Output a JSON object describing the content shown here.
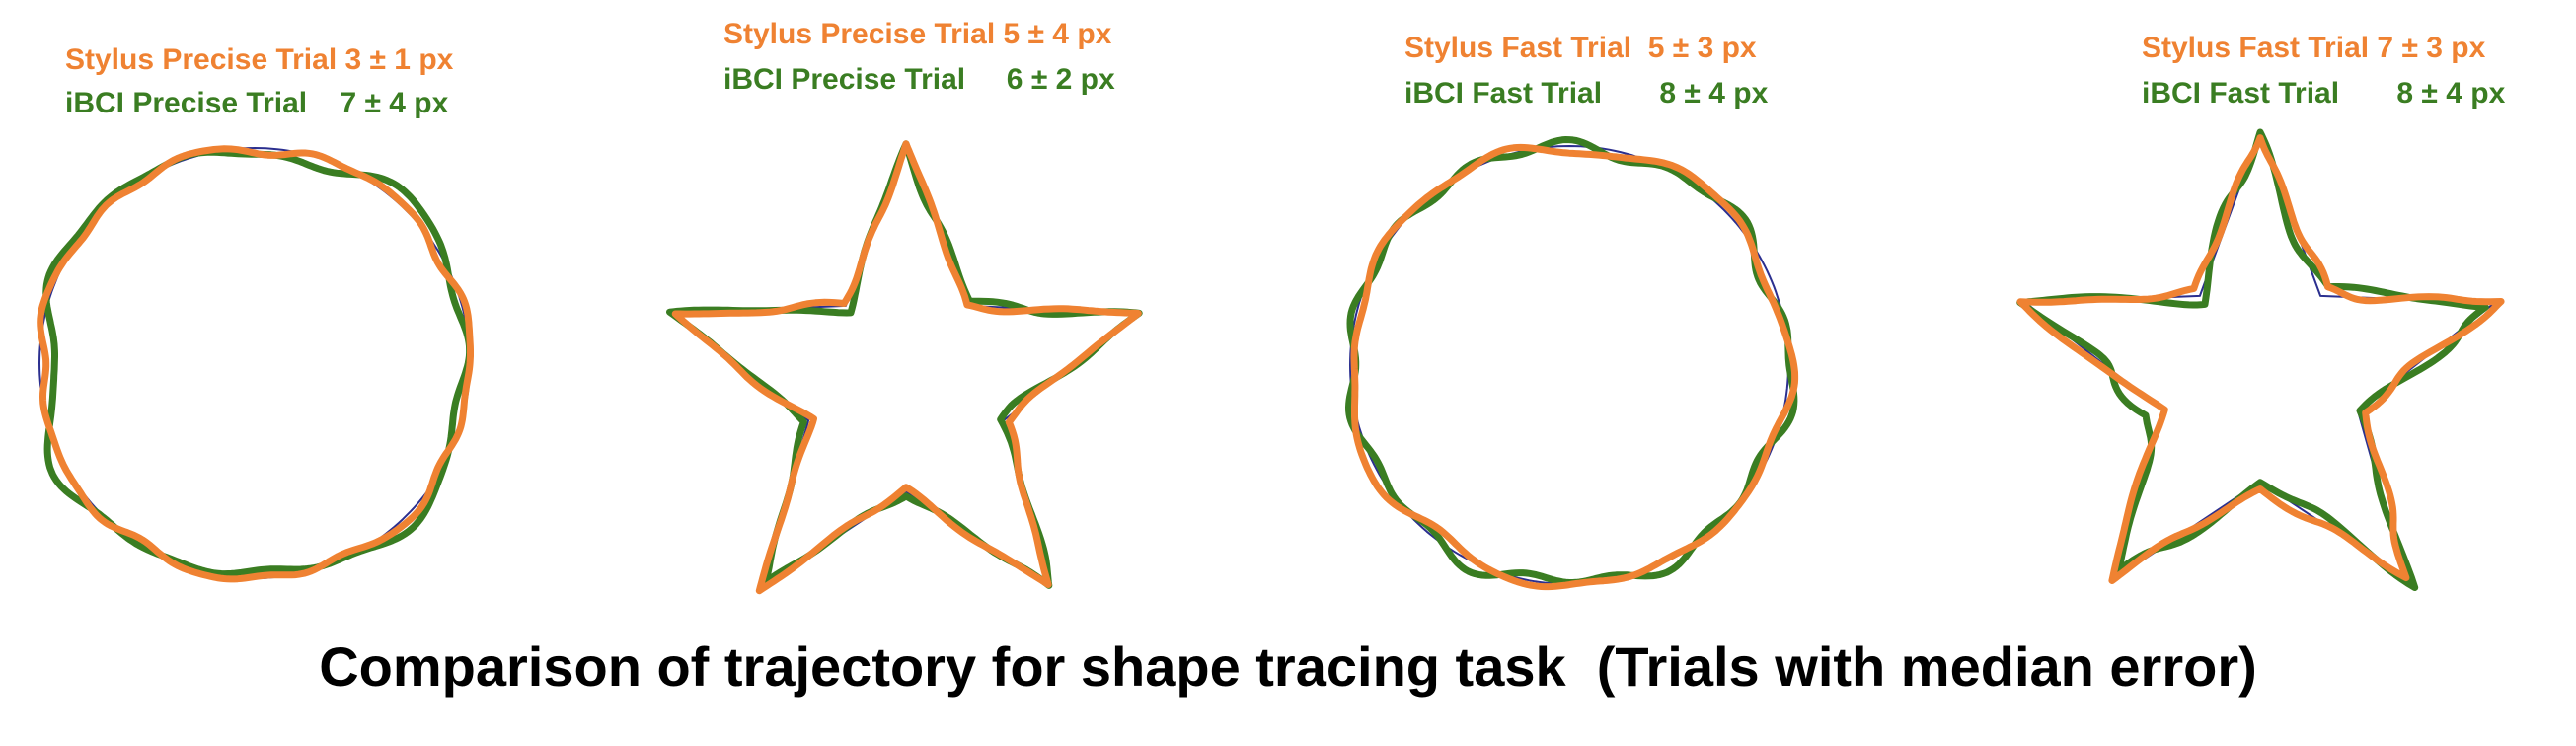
{
  "title": "Comparison of trajectory for shape tracing task  (Trials with median error)",
  "colors": {
    "stylus": "#ef8232",
    "ibci": "#3a7d22",
    "reference": "#2b2f8f"
  },
  "panels": [
    {
      "shape": "circle",
      "stylus_label": "Stylus Precise Trial 3 ± 1 px",
      "ibci_label": "iBCI Precise Trial    7 ± 4 px"
    },
    {
      "shape": "star",
      "stylus_label": "Stylus Precise Trial 5 ± 4 px",
      "ibci_label": "iBCI Precise Trial     6 ± 2 px"
    },
    {
      "shape": "circle",
      "stylus_label": "Stylus Fast Trial  5 ± 3 px",
      "ibci_label": "iBCI Fast Trial       8 ± 4 px"
    },
    {
      "shape": "star",
      "stylus_label": "Stylus Fast Trial 7 ± 3 px",
      "ibci_label": "iBCI Fast Trial       8 ± 4 px"
    }
  ]
}
